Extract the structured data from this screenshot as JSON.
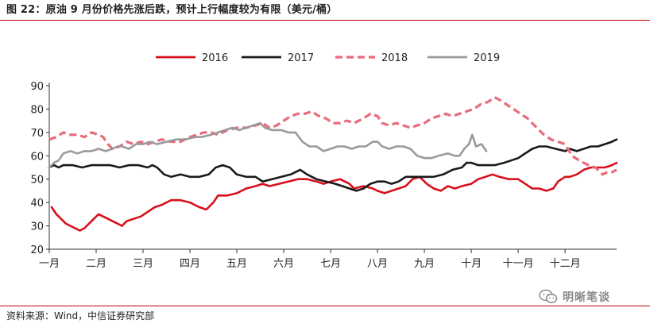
{
  "figure": {
    "title": "图 22：原油 9 月份价格先涨后跌，预计上行幅度较为有限（美元/桶）",
    "source": "资料来源：Wind，中信证券研究部",
    "watermark": "明晰笔谈",
    "watermark_icon": "wechat-icon"
  },
  "chart_data": {
    "type": "line",
    "title": "原油 9 月份价格先涨后跌，预计上行幅度较为有限",
    "unit": "美元/桶",
    "xlabel": "",
    "ylabel": "",
    "ylim": [
      20,
      90
    ],
    "yticks": [
      20,
      30,
      40,
      50,
      60,
      70,
      80,
      90
    ],
    "x_month_labels": [
      "一月",
      "二月",
      "三月",
      "四月",
      "五月",
      "六月",
      "七月",
      "八月",
      "九月",
      "十月",
      "十一月",
      "十二月"
    ],
    "xlim": [
      0,
      12.1
    ],
    "grid": false,
    "legend_position": "top",
    "series": [
      {
        "name": "2016",
        "color": "#d7101b",
        "style": "solid",
        "width": 2.6,
        "points": [
          [
            0.05,
            38
          ],
          [
            0.15,
            35
          ],
          [
            0.25,
            33
          ],
          [
            0.35,
            31
          ],
          [
            0.45,
            30
          ],
          [
            0.55,
            29
          ],
          [
            0.65,
            28
          ],
          [
            0.75,
            29
          ],
          [
            0.85,
            31
          ],
          [
            0.95,
            33
          ],
          [
            1.05,
            35
          ],
          [
            1.15,
            34
          ],
          [
            1.25,
            33
          ],
          [
            1.35,
            32
          ],
          [
            1.45,
            31
          ],
          [
            1.55,
            30
          ],
          [
            1.65,
            32
          ],
          [
            1.8,
            33
          ],
          [
            1.95,
            34
          ],
          [
            2.1,
            36
          ],
          [
            2.25,
            38
          ],
          [
            2.4,
            39
          ],
          [
            2.5,
            40
          ],
          [
            2.6,
            41
          ],
          [
            2.8,
            41
          ],
          [
            3.0,
            40
          ],
          [
            3.2,
            38
          ],
          [
            3.35,
            37
          ],
          [
            3.5,
            40
          ],
          [
            3.6,
            43
          ],
          [
            3.8,
            43
          ],
          [
            4.0,
            44
          ],
          [
            4.2,
            46
          ],
          [
            4.4,
            47
          ],
          [
            4.55,
            48
          ],
          [
            4.7,
            47
          ],
          [
            4.9,
            48
          ],
          [
            5.1,
            49
          ],
          [
            5.3,
            50
          ],
          [
            5.5,
            50
          ],
          [
            5.7,
            49
          ],
          [
            5.85,
            48
          ],
          [
            6.0,
            49
          ],
          [
            6.2,
            50
          ],
          [
            6.4,
            48
          ],
          [
            6.5,
            46
          ],
          [
            6.7,
            47
          ],
          [
            6.9,
            46
          ],
          [
            7.0,
            45
          ],
          [
            7.15,
            44
          ],
          [
            7.3,
            45
          ],
          [
            7.45,
            46
          ],
          [
            7.6,
            47
          ],
          [
            7.75,
            50
          ],
          [
            7.9,
            51
          ],
          [
            8.05,
            48
          ],
          [
            8.2,
            46
          ],
          [
            8.35,
            45
          ],
          [
            8.5,
            47
          ],
          [
            8.65,
            46
          ],
          [
            8.8,
            47
          ],
          [
            9.0,
            48
          ],
          [
            9.15,
            50
          ],
          [
            9.3,
            51
          ],
          [
            9.45,
            52
          ],
          [
            9.6,
            51
          ],
          [
            9.8,
            50
          ],
          [
            10.0,
            50
          ],
          [
            10.15,
            48
          ],
          [
            10.3,
            46
          ],
          [
            10.45,
            46
          ],
          [
            10.6,
            45
          ],
          [
            10.75,
            46
          ],
          [
            10.85,
            49
          ],
          [
            11.0,
            51
          ],
          [
            11.1,
            51
          ],
          [
            11.25,
            52
          ],
          [
            11.4,
            54
          ],
          [
            11.55,
            55
          ],
          [
            11.7,
            55
          ],
          [
            11.85,
            55
          ],
          [
            12.0,
            56
          ],
          [
            12.1,
            57
          ]
        ]
      },
      {
        "name": "2017",
        "color": "#1a1a1a",
        "style": "solid",
        "width": 2.6,
        "points": [
          [
            0.0,
            55
          ],
          [
            0.1,
            56
          ],
          [
            0.2,
            55
          ],
          [
            0.3,
            56
          ],
          [
            0.5,
            56
          ],
          [
            0.7,
            55
          ],
          [
            0.9,
            56
          ],
          [
            1.1,
            56
          ],
          [
            1.3,
            56
          ],
          [
            1.5,
            55
          ],
          [
            1.7,
            56
          ],
          [
            1.9,
            56
          ],
          [
            2.1,
            55
          ],
          [
            2.2,
            56
          ],
          [
            2.3,
            55
          ],
          [
            2.45,
            52
          ],
          [
            2.6,
            51
          ],
          [
            2.8,
            52
          ],
          [
            3.0,
            51
          ],
          [
            3.2,
            51
          ],
          [
            3.4,
            52
          ],
          [
            3.55,
            55
          ],
          [
            3.7,
            56
          ],
          [
            3.85,
            55
          ],
          [
            4.0,
            52
          ],
          [
            4.2,
            51
          ],
          [
            4.4,
            51
          ],
          [
            4.55,
            49
          ],
          [
            4.75,
            50
          ],
          [
            4.95,
            51
          ],
          [
            5.15,
            52
          ],
          [
            5.35,
            54
          ],
          [
            5.5,
            52
          ],
          [
            5.7,
            50
          ],
          [
            5.9,
            49
          ],
          [
            6.1,
            48
          ],
          [
            6.25,
            47
          ],
          [
            6.4,
            46
          ],
          [
            6.55,
            45
          ],
          [
            6.7,
            46
          ],
          [
            6.85,
            48
          ],
          [
            7.0,
            49
          ],
          [
            7.15,
            49
          ],
          [
            7.3,
            48
          ],
          [
            7.45,
            49
          ],
          [
            7.6,
            51
          ],
          [
            7.8,
            51
          ],
          [
            8.0,
            51
          ],
          [
            8.2,
            51
          ],
          [
            8.4,
            52
          ],
          [
            8.6,
            54
          ],
          [
            8.8,
            55
          ],
          [
            8.9,
            57
          ],
          [
            9.0,
            57
          ],
          [
            9.15,
            56
          ],
          [
            9.3,
            56
          ],
          [
            9.5,
            56
          ],
          [
            9.7,
            57
          ],
          [
            9.85,
            58
          ],
          [
            10.0,
            59
          ],
          [
            10.15,
            61
          ],
          [
            10.3,
            63
          ],
          [
            10.45,
            64
          ],
          [
            10.6,
            64
          ],
          [
            10.8,
            63
          ],
          [
            11.0,
            62
          ],
          [
            11.1,
            63
          ],
          [
            11.25,
            62
          ],
          [
            11.4,
            63
          ],
          [
            11.55,
            64
          ],
          [
            11.7,
            64
          ],
          [
            11.85,
            65
          ],
          [
            12.0,
            66
          ],
          [
            12.1,
            67
          ]
        ]
      },
      {
        "name": "2018",
        "color": "#e96b7c",
        "style": "dashed",
        "width": 3.2,
        "points": [
          [
            0.0,
            67
          ],
          [
            0.15,
            68
          ],
          [
            0.3,
            70
          ],
          [
            0.45,
            69
          ],
          [
            0.6,
            69
          ],
          [
            0.75,
            68
          ],
          [
            0.9,
            70
          ],
          [
            1.05,
            69
          ],
          [
            1.15,
            68
          ],
          [
            1.25,
            65
          ],
          [
            1.35,
            63
          ],
          [
            1.5,
            64
          ],
          [
            1.65,
            66
          ],
          [
            1.8,
            65
          ],
          [
            1.95,
            66
          ],
          [
            2.1,
            65
          ],
          [
            2.25,
            66
          ],
          [
            2.4,
            67
          ],
          [
            2.6,
            66
          ],
          [
            2.8,
            66
          ],
          [
            3.0,
            68
          ],
          [
            3.15,
            69
          ],
          [
            3.3,
            70
          ],
          [
            3.45,
            70
          ],
          [
            3.6,
            69
          ],
          [
            3.8,
            71
          ],
          [
            4.0,
            72
          ],
          [
            4.2,
            72
          ],
          [
            4.4,
            73
          ],
          [
            4.55,
            74
          ],
          [
            4.7,
            72
          ],
          [
            4.85,
            73
          ],
          [
            5.0,
            75
          ],
          [
            5.15,
            77
          ],
          [
            5.3,
            78
          ],
          [
            5.45,
            78
          ],
          [
            5.6,
            79
          ],
          [
            5.75,
            77
          ],
          [
            5.9,
            76
          ],
          [
            6.05,
            74
          ],
          [
            6.2,
            74
          ],
          [
            6.35,
            75
          ],
          [
            6.5,
            74
          ],
          [
            6.7,
            76
          ],
          [
            6.85,
            78
          ],
          [
            7.0,
            77
          ],
          [
            7.1,
            74
          ],
          [
            7.25,
            73
          ],
          [
            7.4,
            74
          ],
          [
            7.55,
            73
          ],
          [
            7.7,
            72
          ],
          [
            7.85,
            73
          ],
          [
            8.0,
            74
          ],
          [
            8.15,
            76
          ],
          [
            8.3,
            77
          ],
          [
            8.45,
            78
          ],
          [
            8.6,
            77
          ],
          [
            8.75,
            78
          ],
          [
            8.9,
            79
          ],
          [
            9.05,
            80
          ],
          [
            9.2,
            82
          ],
          [
            9.35,
            83
          ],
          [
            9.5,
            85
          ],
          [
            9.6,
            84
          ],
          [
            9.75,
            82
          ],
          [
            9.9,
            80
          ],
          [
            10.05,
            78
          ],
          [
            10.2,
            76
          ],
          [
            10.35,
            73
          ],
          [
            10.45,
            71
          ],
          [
            10.55,
            69
          ],
          [
            10.7,
            67
          ],
          [
            10.85,
            66
          ],
          [
            11.0,
            65
          ],
          [
            11.15,
            60
          ],
          [
            11.3,
            58
          ],
          [
            11.5,
            56
          ],
          [
            11.65,
            55
          ],
          [
            11.8,
            52
          ],
          [
            11.9,
            53
          ],
          [
            12.0,
            53
          ],
          [
            12.1,
            54
          ]
        ]
      },
      {
        "name": "2019",
        "color": "#9a9a9a",
        "style": "solid",
        "width": 2.6,
        "points": [
          [
            0.0,
            55
          ],
          [
            0.1,
            57
          ],
          [
            0.2,
            58
          ],
          [
            0.3,
            61
          ],
          [
            0.45,
            62
          ],
          [
            0.6,
            61
          ],
          [
            0.75,
            62
          ],
          [
            0.9,
            62
          ],
          [
            1.05,
            63
          ],
          [
            1.2,
            62
          ],
          [
            1.35,
            63
          ],
          [
            1.45,
            64
          ],
          [
            1.55,
            64
          ],
          [
            1.7,
            63
          ],
          [
            1.85,
            65
          ],
          [
            2.0,
            65
          ],
          [
            2.15,
            66
          ],
          [
            2.3,
            65
          ],
          [
            2.5,
            66
          ],
          [
            2.7,
            67
          ],
          [
            2.9,
            67
          ],
          [
            3.1,
            68
          ],
          [
            3.25,
            68
          ],
          [
            3.45,
            69
          ],
          [
            3.6,
            70
          ],
          [
            3.75,
            71
          ],
          [
            3.9,
            72
          ],
          [
            4.05,
            71
          ],
          [
            4.2,
            72
          ],
          [
            4.35,
            73
          ],
          [
            4.5,
            74
          ],
          [
            4.6,
            72
          ],
          [
            4.75,
            71
          ],
          [
            4.95,
            71
          ],
          [
            5.1,
            70
          ],
          [
            5.25,
            70
          ],
          [
            5.4,
            66
          ],
          [
            5.55,
            64
          ],
          [
            5.7,
            64
          ],
          [
            5.85,
            62
          ],
          [
            6.0,
            63
          ],
          [
            6.15,
            64
          ],
          [
            6.3,
            64
          ],
          [
            6.45,
            63
          ],
          [
            6.6,
            64
          ],
          [
            6.75,
            64
          ],
          [
            6.9,
            66
          ],
          [
            7.0,
            66
          ],
          [
            7.1,
            64
          ],
          [
            7.25,
            63
          ],
          [
            7.4,
            64
          ],
          [
            7.55,
            64
          ],
          [
            7.7,
            63
          ],
          [
            7.85,
            60
          ],
          [
            8.0,
            59
          ],
          [
            8.15,
            59
          ],
          [
            8.3,
            60
          ],
          [
            8.5,
            61
          ],
          [
            8.65,
            60
          ],
          [
            8.75,
            60
          ],
          [
            8.85,
            63
          ],
          [
            8.95,
            65
          ],
          [
            9.02,
            69
          ],
          [
            9.1,
            64
          ],
          [
            9.22,
            65
          ],
          [
            9.32,
            62
          ]
        ]
      }
    ]
  }
}
